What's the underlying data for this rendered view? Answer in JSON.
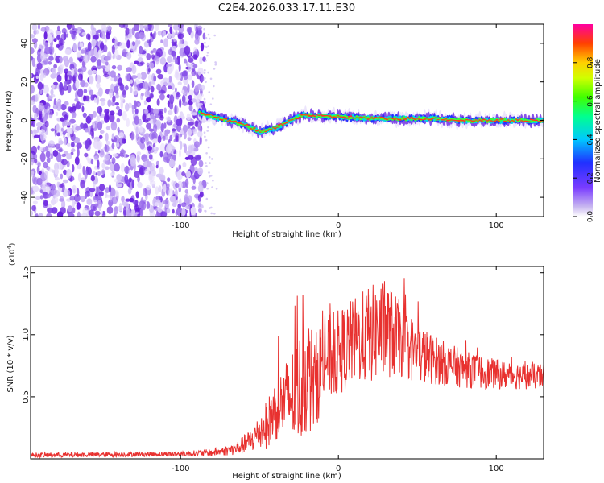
{
  "chart_data": [
    {
      "type": "heatmap",
      "title": "C2E4.2026.033.17.11.E30",
      "xlabel": "Height of straight line (km)",
      "ylabel": "Frequency (Hz)",
      "xlim": [
        -195,
        130
      ],
      "ylim": [
        -50,
        50
      ],
      "xticks": [
        -100,
        0,
        100
      ],
      "yticks": [
        -40,
        -20,
        0,
        20,
        40
      ],
      "colorbar": {
        "label": "Normalized spectral amplitude",
        "range": [
          0,
          1
        ],
        "ticks": [
          "0.0",
          "0.2",
          "0.4",
          "0.6",
          "0.8"
        ]
      },
      "noise_region_upper_km": -85,
      "ridge": {
        "description_points_km": [
          -88,
          -75,
          -60,
          -50,
          -40,
          -30,
          -22,
          -10,
          0,
          20,
          40,
          60,
          80,
          100,
          130
        ],
        "frequency_hz": [
          4,
          1,
          -2,
          -6,
          -4,
          0,
          3,
          2,
          2,
          1,
          1,
          1,
          0,
          0,
          0
        ]
      }
    },
    {
      "type": "line",
      "xlabel": "Height of straight line (km)",
      "ylabel": "SNR (10 * v/v)",
      "scale_label": "(x10",
      "scale_exp": "4",
      "scale_close": ")",
      "xlim": [
        -195,
        130
      ],
      "ylim": [
        0,
        1.55
      ],
      "xticks": [
        -100,
        0,
        100
      ],
      "yticks": [
        "0.5",
        "1.0",
        "1.5"
      ],
      "ytick_values": [
        0.5,
        1.0,
        1.5
      ],
      "color": "#e8312f",
      "envelope": {
        "x": [
          -195,
          -100,
          -80,
          -65,
          -55,
          -45,
          -40,
          -35,
          -25,
          -20,
          -15,
          -10,
          0,
          10,
          20,
          30,
          40,
          50,
          60,
          80,
          100,
          130
        ],
        "mean": [
          0.03,
          0.04,
          0.05,
          0.08,
          0.15,
          0.28,
          0.4,
          0.45,
          0.55,
          0.7,
          0.6,
          0.8,
          0.85,
          0.95,
          1.0,
          1.05,
          0.95,
          0.85,
          0.8,
          0.72,
          0.68,
          0.66
        ],
        "amplitude": [
          0.02,
          0.02,
          0.03,
          0.05,
          0.1,
          0.2,
          0.25,
          0.3,
          0.45,
          0.5,
          0.4,
          0.35,
          0.35,
          0.35,
          0.4,
          0.4,
          0.3,
          0.25,
          0.2,
          0.15,
          0.12,
          0.1
        ]
      }
    }
  ]
}
